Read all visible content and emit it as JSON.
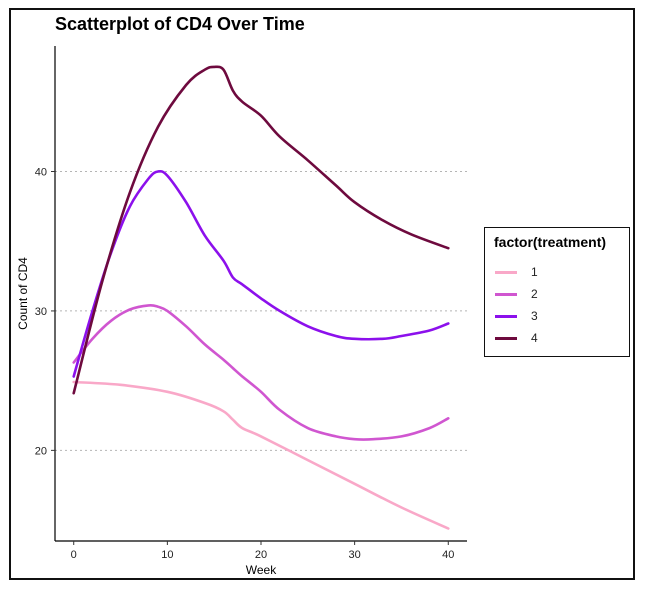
{
  "chart_data": {
    "type": "line",
    "title": "Scatterplot of CD4 Over Time",
    "xlabel": "Week",
    "ylabel": "Count of CD4",
    "xlim": [
      -2,
      42
    ],
    "ylim": [
      13.5,
      49
    ],
    "x_ticks": [
      0,
      10,
      20,
      30,
      40
    ],
    "y_ticks": [
      20,
      30,
      40
    ],
    "grid": "horizontal dotted lines at major y ticks",
    "legend": {
      "title": "factor(treatment)",
      "position": "right"
    },
    "series": [
      {
        "name": "1",
        "color": "#f9a8c8",
        "x": [
          0,
          5,
          10,
          14,
          16,
          17,
          18,
          20,
          25,
          30,
          35,
          40
        ],
        "y": [
          24.9,
          24.7,
          24.2,
          23.4,
          22.8,
          22.2,
          21.6,
          21.0,
          19.3,
          17.6,
          15.9,
          14.4
        ]
      },
      {
        "name": "2",
        "color": "#d056d0",
        "x": [
          0,
          2,
          4,
          6,
          8,
          9,
          10,
          12,
          14,
          16,
          17,
          18,
          20,
          22,
          25,
          28,
          30,
          32,
          35,
          38,
          40
        ],
        "y": [
          26.3,
          28.0,
          29.3,
          30.1,
          30.4,
          30.3,
          30.0,
          28.9,
          27.6,
          26.5,
          25.9,
          25.3,
          24.2,
          22.9,
          21.6,
          21.0,
          20.8,
          20.8,
          21.0,
          21.6,
          22.3
        ]
      },
      {
        "name": "3",
        "color": "#8c10ec",
        "x": [
          0,
          2,
          4,
          6,
          8,
          9,
          10,
          12,
          14,
          16,
          17,
          18,
          20,
          22,
          25,
          28,
          30,
          33,
          35,
          38,
          40
        ],
        "y": [
          25.3,
          30.0,
          34.2,
          37.5,
          39.5,
          40.0,
          39.7,
          37.8,
          35.4,
          33.6,
          32.4,
          31.9,
          30.9,
          30.0,
          28.9,
          28.2,
          28.0,
          28.0,
          28.2,
          28.6,
          29.1
        ]
      },
      {
        "name": "4",
        "color": "#6e0a3e",
        "x": [
          0,
          3,
          6,
          9,
          12,
          14,
          15,
          16,
          17,
          18,
          20,
          22,
          25,
          28,
          30,
          33,
          36,
          40
        ],
        "y": [
          24.1,
          32.0,
          38.5,
          43.2,
          46.2,
          47.3,
          47.5,
          47.3,
          45.8,
          45.0,
          44.0,
          42.5,
          40.8,
          39.0,
          37.8,
          36.5,
          35.5,
          34.5
        ]
      }
    ]
  }
}
